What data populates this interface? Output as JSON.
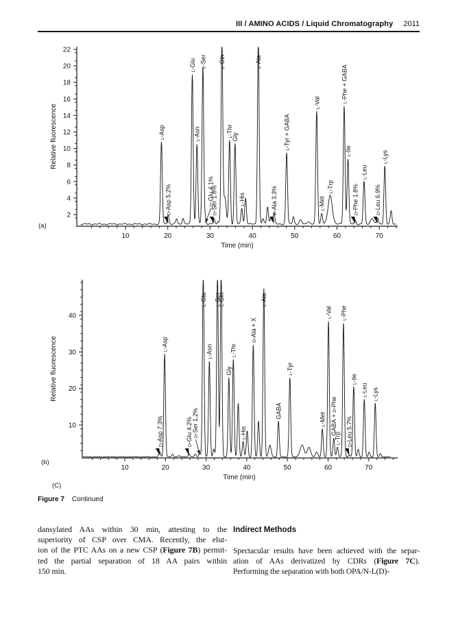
{
  "header": {
    "title": "III / AMINO ACIDS / Liquid Chromatography",
    "page_number": "2011"
  },
  "figure": {
    "panel_c_label": "(C)",
    "caption_label": "Figure 7",
    "caption_text": "Continued"
  },
  "body": {
    "left_column": {
      "lines": [
        "dansylated AAs within 30 min, attesting to the",
        "superiority of CSP over CMA. Recently, the elut-",
        "ion of the PTC AAs on a new CSP (Figure 7B) permit-",
        "ted the partial separation of 18 AA pairs within",
        "150 min."
      ],
      "bold_terms": [
        "Figure 7B"
      ]
    },
    "right_column": {
      "heading": "Indirect Methods",
      "lines": [
        "Spectacular results have been achieved with the separ-",
        "ation of AAs derivatized by CDRs (Figure 7C).",
        "Performing the separation with both OPA/N-L(D)-"
      ],
      "bold_terms": [
        "Figure 7C"
      ]
    }
  },
  "chart_data": [
    {
      "id": "a",
      "type": "line",
      "panel_label": "(a)",
      "xlabel": "Time (min)",
      "ylabel": "Relative fluorescence",
      "xlim": [
        0,
        74
      ],
      "ylim": [
        0.6,
        22.4
      ],
      "xticks": [
        10,
        20,
        30,
        40,
        50,
        60,
        70
      ],
      "yticks": [
        2,
        4,
        6,
        8,
        10,
        12,
        14,
        16,
        18,
        20,
        22
      ],
      "xticks_minor_step": 2,
      "yticks_minor_step": 1,
      "grid": false,
      "trace_color": "#141414",
      "baseline": 0.85,
      "peaks": [
        {
          "t": 18.5,
          "v": 10.8,
          "label": "L-Asp"
        },
        {
          "t": 20.1,
          "v": 2.0,
          "label": "D-Asp 5.2%",
          "kind": "marker"
        },
        {
          "t": 22.1,
          "v": 1.5
        },
        {
          "t": 23.6,
          "v": 1.6
        },
        {
          "t": 25.8,
          "v": 19.0,
          "label": "L-Glu"
        },
        {
          "t": 26.9,
          "v": 10.6,
          "label": "L-Asn"
        },
        {
          "t": 28.3,
          "v": 20.0,
          "label": "L-Ser"
        },
        {
          "t": 28.9,
          "v": 1.6,
          "label": "D-Glu 4.1%",
          "kind": "arrow",
          "label_t": 30.1,
          "target_t": 28.9
        },
        {
          "t": 30.9,
          "v": 1.5,
          "label": "D-Ser 1.8%",
          "kind": "marker"
        },
        {
          "t": 31.9,
          "v": 1.2
        },
        {
          "t": 32.8,
          "v": 23.0,
          "label": "L-Gln"
        },
        {
          "t": 33.5,
          "v": 4.0,
          "s": 0.3
        },
        {
          "t": 34.6,
          "v": 11.0,
          "label": "L-Thr"
        },
        {
          "t": 35.9,
          "v": 10.6,
          "label": "Gly"
        },
        {
          "t": 37.5,
          "v": 2.8,
          "label": "L-His"
        },
        {
          "t": 38.4,
          "v": 4.0
        },
        {
          "t": 41.4,
          "v": 23.2,
          "label": "L-Ala"
        },
        {
          "t": 42.5,
          "v": 1.5
        },
        {
          "t": 43.6,
          "v": 3.0
        },
        {
          "t": 44.4,
          "v": 1.7
        },
        {
          "t": 45.1,
          "v": 2.2,
          "label": "D-Ala 3.3%",
          "kind": "marker"
        },
        {
          "t": 48.1,
          "v": 9.5,
          "label": "L-Tyr + GABA"
        },
        {
          "t": 49.7,
          "v": 1.8
        },
        {
          "t": 51.4,
          "v": 1.3,
          "s": 0.3
        },
        {
          "t": 53.2,
          "v": 1.2,
          "s": 0.3
        },
        {
          "t": 55.2,
          "v": 14.5,
          "label": "L-Val"
        },
        {
          "t": 56.4,
          "v": 2.2,
          "label": "L-Met"
        },
        {
          "t": 58.4,
          "v": 4.3,
          "label": "L-Trp",
          "s": 0.5
        },
        {
          "t": 61.7,
          "v": 15.2,
          "label": "L-Phe + GABA"
        },
        {
          "t": 62.6,
          "v": 8.8,
          "label": "L-Ile"
        },
        {
          "t": 64.3,
          "v": 1.3,
          "label": "D-Phe 1.8%",
          "kind": "marker"
        },
        {
          "t": 66.4,
          "v": 6.0,
          "label": "L-Leu"
        },
        {
          "t": 68.3,
          "v": 1.6,
          "s": 0.35
        },
        {
          "t": 69.6,
          "v": 1.6,
          "label": "D-Leu 6.9%",
          "kind": "marker"
        },
        {
          "t": 71.3,
          "v": 7.9,
          "label": "L-Lys"
        },
        {
          "t": 72.8,
          "v": 2.4
        }
      ]
    },
    {
      "id": "b",
      "type": "line",
      "panel_label": "(b)",
      "xlabel": "Time (min)",
      "ylabel": "Relative fluorescence",
      "xlim": [
        0,
        76
      ],
      "ylim": [
        1,
        49.6
      ],
      "xticks": [
        10,
        20,
        30,
        40,
        50,
        60,
        70
      ],
      "yticks": [
        10,
        20,
        30,
        40
      ],
      "xticks_minor_step": 2,
      "yticks_minor_step": 2,
      "grid": false,
      "trace_color": "#141414",
      "baseline": 1.3,
      "peaks": [
        {
          "t": 18.6,
          "v": 2.8,
          "label": "D-Asp 7.3%",
          "kind": "marker"
        },
        {
          "t": 19.8,
          "v": 29.5,
          "label": "L-Asp"
        },
        {
          "t": 21.8,
          "v": 2.0
        },
        {
          "t": 23.3,
          "v": 1.7
        },
        {
          "t": 25.8,
          "v": 2.2,
          "label": "D-Glu 4.2%",
          "kind": "marker"
        },
        {
          "t": 27.3,
          "v": 2.0,
          "label": "D-Ser 1.2%",
          "kind": "arrow",
          "label_t": 27.3,
          "target_t": 28.4
        },
        {
          "t": 28.4,
          "v": 2.4
        },
        {
          "t": 29.3,
          "v": 52,
          "label": "L-Glu"
        },
        {
          "t": 30.8,
          "v": 27.5,
          "label": "L-Asn"
        },
        {
          "t": 31.9,
          "v": 3.5
        },
        {
          "t": 32.8,
          "v": 52,
          "label": "L-Ser"
        },
        {
          "t": 33.7,
          "v": 52,
          "label": "L-Gln"
        },
        {
          "t": 35.6,
          "v": 23,
          "label": "Gly"
        },
        {
          "t": 36.7,
          "v": 28,
          "label": "L-Thr"
        },
        {
          "t": 37.9,
          "v": 16
        },
        {
          "t": 39.1,
          "v": 5.5,
          "label": "L-His"
        },
        {
          "t": 40.1,
          "v": 8.5
        },
        {
          "t": 41.6,
          "v": 32,
          "label": "D-Ala + X"
        },
        {
          "t": 42.9,
          "v": 11
        },
        {
          "t": 44.2,
          "v": 47.5,
          "label": "L-Ala"
        },
        {
          "t": 45.7,
          "v": 4.5,
          "s": 0.3
        },
        {
          "t": 47.8,
          "v": 11,
          "label": "GABA"
        },
        {
          "t": 50.6,
          "v": 23,
          "label": "L-Tyr"
        },
        {
          "t": 53.6,
          "v": 4.5,
          "s": 0.5
        },
        {
          "t": 55.3,
          "v": 4.0,
          "s": 0.4
        },
        {
          "t": 57.2,
          "v": 2.5,
          "s": 0.3
        },
        {
          "t": 58.6,
          "v": 9,
          "label": "L-Met"
        },
        {
          "t": 60.1,
          "v": 38.5,
          "label": "L-Val"
        },
        {
          "t": 61.4,
          "v": 6.5,
          "label": "GABA + D-Phe"
        },
        {
          "t": 62.3,
          "v": 4.0,
          "label": "L-Trp"
        },
        {
          "t": 63.8,
          "v": 38,
          "label": "L-Phe"
        },
        {
          "t": 65.2,
          "v": 1.8,
          "label": "D-Leu 5.7%",
          "kind": "marker"
        },
        {
          "t": 66.3,
          "v": 20.5,
          "label": "L-Ile"
        },
        {
          "t": 67.4,
          "v": 3.5
        },
        {
          "t": 68.9,
          "v": 17,
          "label": "L-Leu"
        },
        {
          "t": 70.1,
          "v": 2.6
        },
        {
          "t": 71.6,
          "v": 16,
          "label": "L-Lys"
        },
        {
          "t": 72.9,
          "v": 2.2
        }
      ]
    }
  ]
}
